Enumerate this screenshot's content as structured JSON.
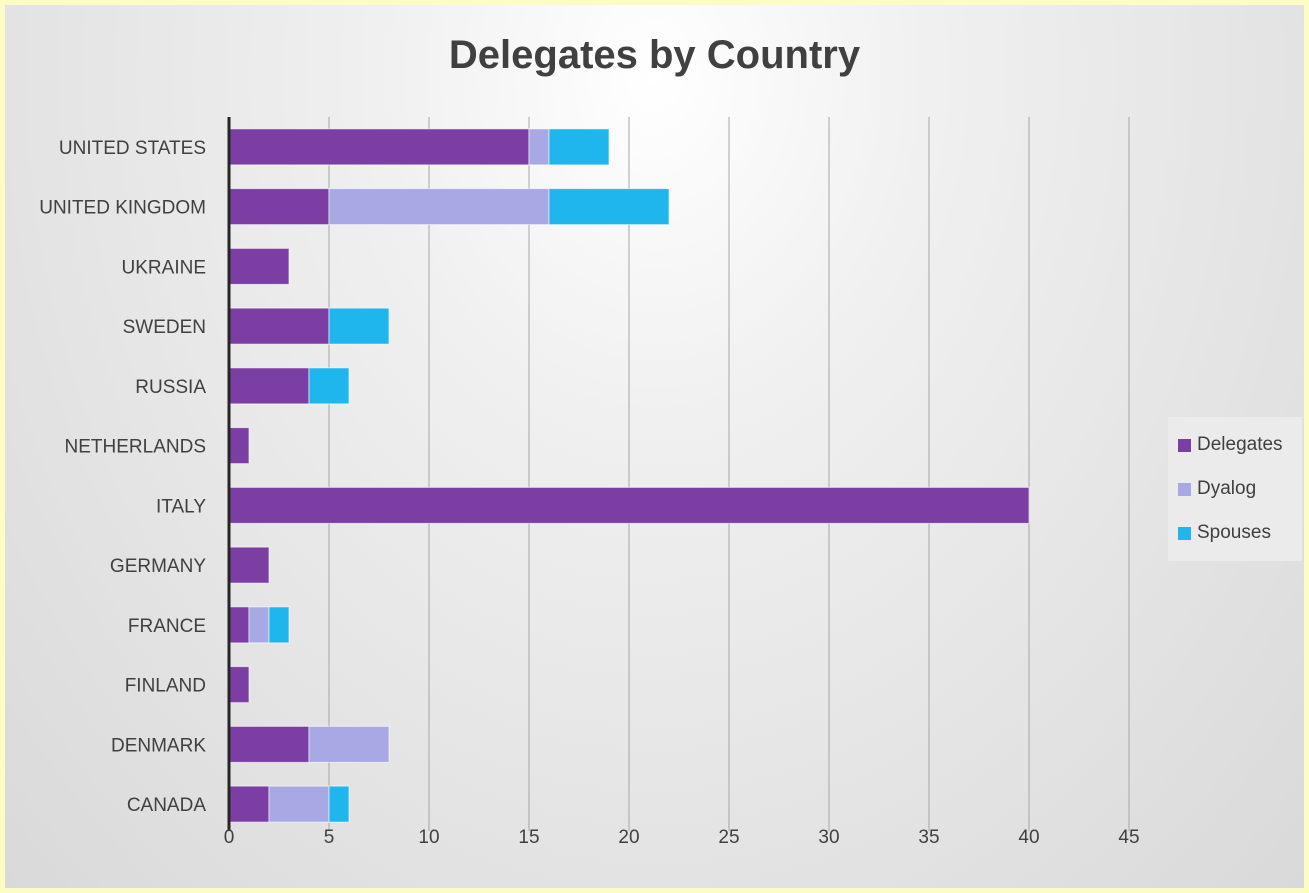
{
  "chart_data": {
    "type": "bar",
    "orientation": "horizontal",
    "stacked": true,
    "title": "Delegates by Country",
    "xlabel": "",
    "ylabel": "",
    "xlim": [
      0,
      45
    ],
    "ticks": [
      "0",
      "5",
      "10",
      "15",
      "20",
      "25",
      "30",
      "35",
      "40",
      "45"
    ],
    "grid": true,
    "legend_position": "right",
    "categories": [
      "UNITED STATES",
      "UNITED KINGDOM",
      "UKRAINE",
      "SWEDEN",
      "RUSSIA",
      "NETHERLANDS",
      "ITALY",
      "GERMANY",
      "FRANCE",
      "FINLAND",
      "DENMARK",
      "CANADA"
    ],
    "series": [
      {
        "name": "Delegates",
        "color": "#7b3fa4",
        "values": [
          15,
          5,
          3,
          5,
          4,
          1,
          40,
          2,
          1,
          1,
          4,
          2
        ]
      },
      {
        "name": "Dyalog",
        "color": "#a8a8e4",
        "values": [
          1,
          11,
          0,
          0,
          0,
          0,
          0,
          0,
          1,
          0,
          4,
          3
        ]
      },
      {
        "name": "Spouses",
        "color": "#1eb6ec",
        "values": [
          3,
          6,
          0,
          3,
          2,
          0,
          0,
          0,
          1,
          0,
          0,
          1
        ]
      }
    ]
  }
}
